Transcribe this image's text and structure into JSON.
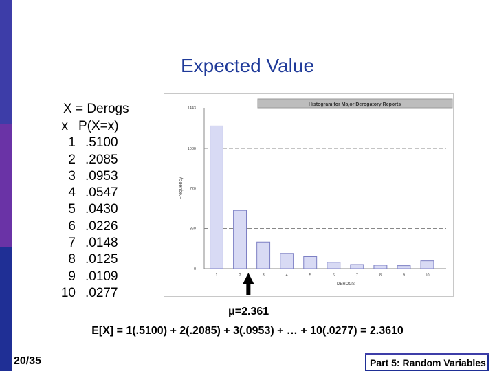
{
  "slide": {
    "title": "Expected Value",
    "page_number": "20/35",
    "footer_label": "Part 5: Random Variables",
    "mu_text": "μ=2.361",
    "expectation_text": "E[X] = 1(.5100) + 2(.2085) + 3(.0953) + … + 10(.0277) = 2.3610"
  },
  "table": {
    "header": "X = Derogs",
    "col_x": "x",
    "col_p": "P(X=x)",
    "rows": [
      {
        "x": "1",
        "p": ".5100"
      },
      {
        "x": "2",
        "p": ".2085"
      },
      {
        "x": "3",
        "p": ".0953"
      },
      {
        "x": "4",
        "p": ".0547"
      },
      {
        "x": "5",
        "p": ".0430"
      },
      {
        "x": "6",
        "p": ".0226"
      },
      {
        "x": "7",
        "p": ".0148"
      },
      {
        "x": "8",
        "p": ".0125"
      },
      {
        "x": "9",
        "p": ".0109"
      },
      {
        "x": "10",
        "p": ".0277"
      }
    ]
  },
  "chart_data": {
    "type": "bar",
    "title": "Histogram for Major Derogatory Reports",
    "xlabel": "DEROGS",
    "ylabel": "Frequency",
    "categories": [
      "1",
      "2",
      "3",
      "4",
      "5",
      "6",
      "7",
      "8",
      "9",
      "10"
    ],
    "values": [
      1280,
      523,
      239,
      137,
      108,
      57,
      37,
      31,
      27,
      70
    ],
    "yticks": [
      "0",
      "360",
      "720",
      "1080",
      "1443"
    ],
    "ytick_values": [
      0,
      360,
      720,
      1080,
      1443
    ],
    "ylim": [
      0,
      1443
    ],
    "reference_lines": [
      360,
      1080
    ],
    "bar_color": "#d8daf4",
    "bar_stroke": "#7c7fc4",
    "marker": {
      "type": "up-arrow",
      "x_value": 2.361
    }
  }
}
